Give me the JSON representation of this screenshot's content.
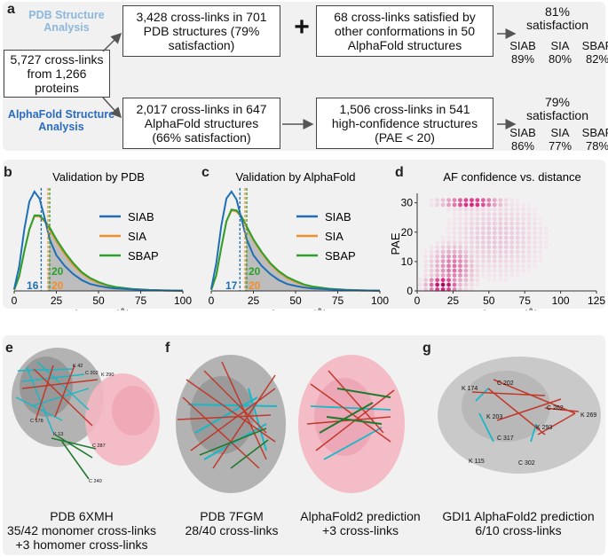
{
  "panel_a": {
    "label": "a",
    "pdb_title": "PDB Structure Analysis",
    "af_title": "AlphaFold Structure Analysis",
    "source": "5,727 cross-links from 1,266 proteins",
    "pdb_box1": "3,428 cross-links in 701 PDB structures (79% satisfaction)",
    "plus": "+",
    "pdb_box2": "68 cross-links satisfied by other conformations in 50 AlphaFold structures",
    "pdb_sat": "81% satisfaction",
    "pdb_sat_table": {
      "headers": [
        "SIAB",
        "SIA",
        "SBAP"
      ],
      "values": [
        "89%",
        "80%",
        "82%"
      ]
    },
    "af_box1": "2,017 cross-links in 647 AlphaFold structures (66% satisfaction)",
    "af_box2": "1,506 cross-links in 541 high-confidence structures (PAE < 20)",
    "af_sat": "79% satisfaction",
    "af_sat_table": {
      "headers": [
        "SIAB",
        "SIA",
        "SBAP"
      ],
      "values": [
        "86%",
        "77%",
        "78%"
      ]
    }
  },
  "panel_b": {
    "label": "b",
    "title": "Validation by PDB",
    "xlabel": "Distance (Å)",
    "ann_blue": "16",
    "ann_orange": "20",
    "ann_green": "20"
  },
  "panel_c": {
    "label": "c",
    "title": "Validation by AlphaFold",
    "xlabel": "Distance (Å)",
    "ann_blue": "17",
    "ann_orange": "20",
    "ann_green": "20"
  },
  "panel_d": {
    "label": "d",
    "title": "AF confidence vs. distance",
    "xlabel": "Distance (Å)",
    "ylabel": "PAE"
  },
  "legend": [
    "SIAB",
    "SIA",
    "SBAP"
  ],
  "colors": {
    "siab": "#1f6fb4",
    "sia": "#f28e2b",
    "sbap": "#2ca02c",
    "panel_bg": "#f1f1f1",
    "crosslink_red": "#c0392b",
    "crosslink_cyan": "#17b8c8",
    "pink": "#f4b6c2"
  },
  "chart_data": [
    {
      "type": "line",
      "title": "Validation by PDB",
      "xlabel": "Distance (Å)",
      "ylabel": "",
      "xlim": [
        0,
        100
      ],
      "xticks": [
        0,
        25,
        50,
        75,
        100
      ],
      "x": [
        0,
        3,
        6,
        9,
        12,
        15,
        18,
        21,
        25,
        30,
        35,
        40,
        45,
        50,
        55,
        60,
        70,
        80,
        90,
        100
      ],
      "series": [
        {
          "name": "SIAB",
          "values": [
            0.02,
            0.25,
            0.62,
            0.9,
            1.0,
            0.93,
            0.74,
            0.52,
            0.36,
            0.25,
            0.17,
            0.11,
            0.07,
            0.05,
            0.035,
            0.025,
            0.015,
            0.008,
            0.004,
            0.002
          ]
        },
        {
          "name": "SIA",
          "values": [
            0.01,
            0.15,
            0.4,
            0.62,
            0.75,
            0.75,
            0.7,
            0.62,
            0.5,
            0.37,
            0.26,
            0.18,
            0.12,
            0.08,
            0.055,
            0.035,
            0.018,
            0.009,
            0.004,
            0.002
          ]
        },
        {
          "name": "SBAP",
          "values": [
            0.01,
            0.15,
            0.4,
            0.62,
            0.76,
            0.76,
            0.71,
            0.64,
            0.52,
            0.39,
            0.28,
            0.19,
            0.13,
            0.09,
            0.06,
            0.04,
            0.02,
            0.01,
            0.005,
            0.002
          ]
        }
      ],
      "thresholds": [
        16,
        20,
        20
      ]
    },
    {
      "type": "line",
      "title": "Validation by AlphaFold",
      "xlabel": "Distance (Å)",
      "ylabel": "",
      "xlim": [
        0,
        100
      ],
      "xticks": [
        0,
        25,
        50,
        75,
        100
      ],
      "x": [
        0,
        3,
        6,
        9,
        12,
        15,
        18,
        21,
        25,
        30,
        35,
        40,
        45,
        50,
        55,
        60,
        70,
        80,
        90,
        100
      ],
      "series": [
        {
          "name": "SIAB",
          "values": [
            0.02,
            0.28,
            0.66,
            0.93,
            1.0,
            0.92,
            0.72,
            0.52,
            0.36,
            0.25,
            0.17,
            0.11,
            0.07,
            0.05,
            0.035,
            0.025,
            0.015,
            0.008,
            0.004,
            0.002
          ]
        },
        {
          "name": "SIA",
          "values": [
            0.01,
            0.16,
            0.44,
            0.7,
            0.81,
            0.8,
            0.74,
            0.64,
            0.51,
            0.38,
            0.27,
            0.19,
            0.13,
            0.09,
            0.06,
            0.04,
            0.02,
            0.01,
            0.005,
            0.002
          ]
        },
        {
          "name": "SBAP",
          "values": [
            0.01,
            0.16,
            0.44,
            0.7,
            0.82,
            0.81,
            0.75,
            0.65,
            0.52,
            0.39,
            0.28,
            0.2,
            0.14,
            0.1,
            0.065,
            0.045,
            0.022,
            0.011,
            0.005,
            0.002
          ]
        }
      ],
      "thresholds": [
        17,
        20,
        20
      ]
    },
    {
      "type": "heatmap",
      "title": "AF confidence vs. distance",
      "xlabel": "Distance (Å)",
      "ylabel": "PAE",
      "xlim": [
        0,
        125
      ],
      "ylim": [
        0,
        32
      ],
      "xticks": [
        0,
        25,
        50,
        75,
        100,
        125
      ],
      "yticks": [
        0,
        10,
        20,
        30
      ]
    }
  ],
  "panel_e": {
    "label": "e",
    "caption_line1": "PDB 6XMH",
    "caption_line2": "35/42 monomer cross-links",
    "caption_line3": "+3 homomer cross-links",
    "residues": [
      "K 42",
      "K 290",
      "C 202",
      "C 178",
      "K 13",
      "C 287",
      "C 240"
    ]
  },
  "panel_f": {
    "label": "f",
    "caption1_line1": "PDB 7FGM",
    "caption1_line2": "28/40 cross-links",
    "caption2_line1": "AlphaFold2 prediction",
    "caption2_line2": "+3 cross-links"
  },
  "panel_g": {
    "label": "g",
    "caption_line1": "GDI1 AlphaFold2 prediction",
    "caption_line2": "6/10 cross-links",
    "residues": [
      "C 202",
      "K 174",
      "C 262",
      "K 269",
      "K 203",
      "C 317",
      "K 293",
      "K 115",
      "C 302"
    ]
  }
}
